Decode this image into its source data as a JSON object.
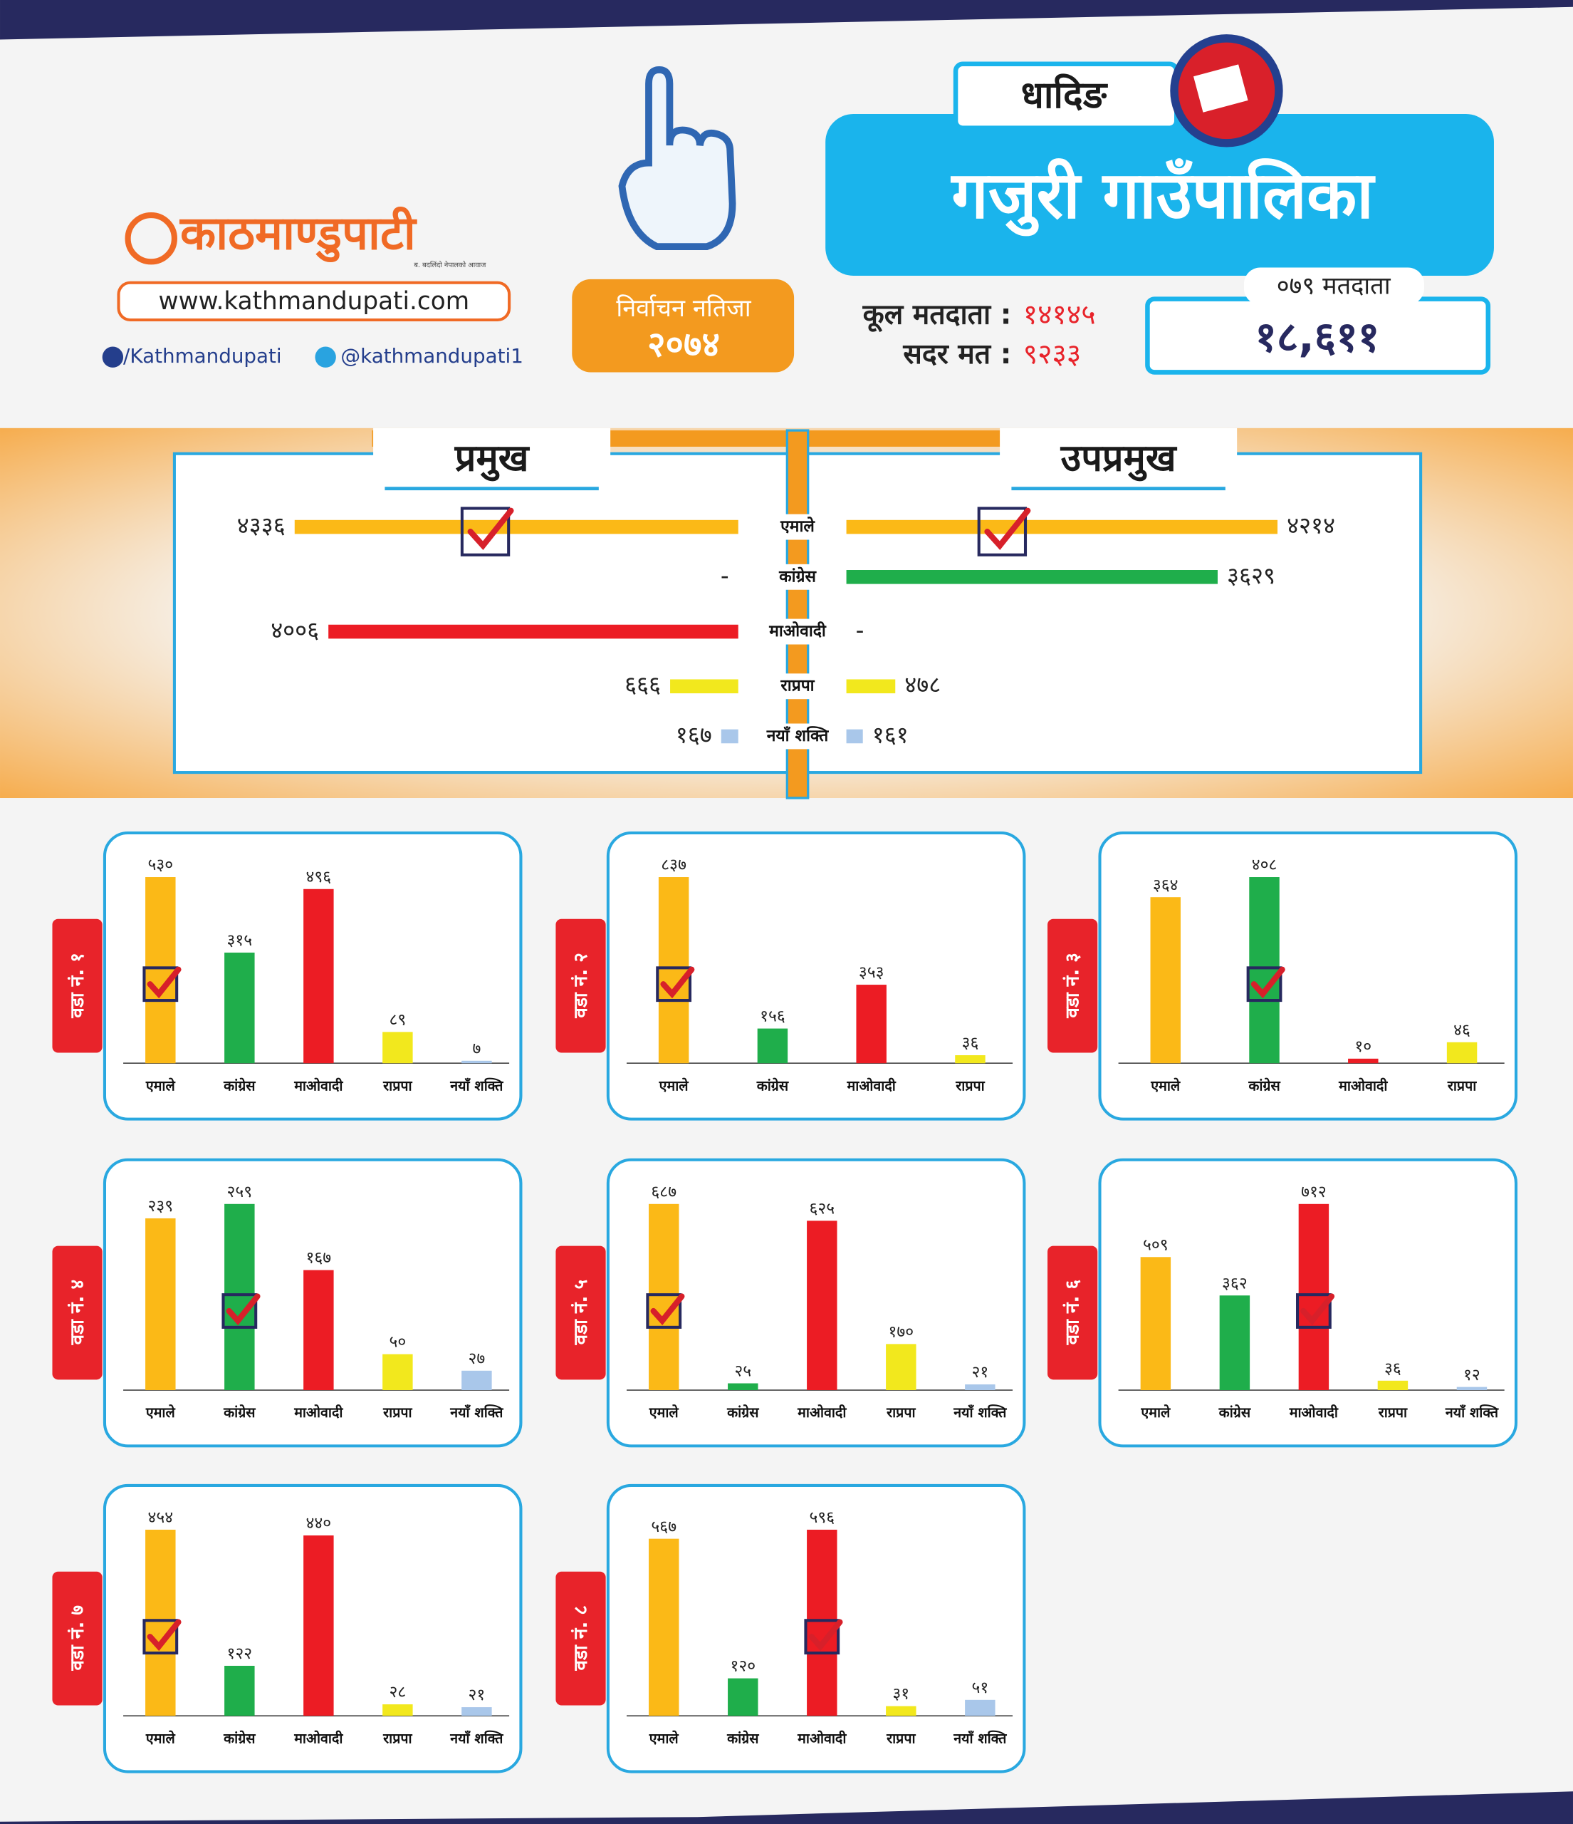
{
  "header": {
    "logo": "काठमाण्डुपाटी",
    "tagline": "ब. बदलिंदो नेपालको आवाज",
    "website": "www.kathmandupati.com",
    "facebook": "/Kathmandupati",
    "twitter": "@kathmandupati1",
    "badge_title": "निर्वाचन नतिजा",
    "badge_year": "२०७४",
    "district": "धादिङ",
    "municipality": "गजुरी गाउँपालिका",
    "total_voters_label": "कूल मतदाता :",
    "total_voters": "१४१४५",
    "valid_votes_label": "सदर मत :",
    "valid_votes": "९२३३",
    "voters_079_label": "०७९ मतदाता",
    "voters_079": "१८,६११"
  },
  "chart_data": [
    {
      "type": "diverging-bar",
      "categories": [
        "एमाले",
        "कांग्रेस",
        "माओवादी",
        "राप्रपा",
        "नयाँ शक्ति"
      ],
      "colors": [
        "#fbb917",
        "#1fae4b",
        "#ec1c24",
        "#f2e81d",
        "#a9c7ea"
      ],
      "series": [
        {
          "name": "प्रमुख",
          "values": [
            4336,
            null,
            4006,
            666,
            167
          ],
          "value_labels": [
            "४३३६",
            "-",
            "४००६",
            "६६६",
            "१६७"
          ],
          "winner": 0
        },
        {
          "name": "उपप्रमुख",
          "values": [
            4214,
            3629,
            null,
            478,
            161
          ],
          "value_labels": [
            "४२१४",
            "३६२९",
            "-",
            "४७८",
            "१६१"
          ],
          "winner": 0
        }
      ]
    },
    {
      "type": "bar",
      "title": "वडा नं. १",
      "categories": [
        "एमाले",
        "कांग्रेस",
        "माओवादी",
        "राप्रपा",
        "नयाँ शक्ति"
      ],
      "values": [
        530,
        315,
        496,
        89,
        7
      ],
      "value_labels": [
        "५३०",
        "३१५",
        "४९६",
        "८९",
        "७"
      ],
      "colors": [
        "#fbb917",
        "#1fae4b",
        "#ec1c24",
        "#f2e81d",
        "#a9c7ea"
      ],
      "winner": 0
    },
    {
      "type": "bar",
      "title": "वडा नं. २",
      "categories": [
        "एमाले",
        "कांग्रेस",
        "माओवादी",
        "राप्रपा"
      ],
      "values": [
        837,
        156,
        353,
        36
      ],
      "value_labels": [
        "८३७",
        "१५६",
        "३५३",
        "३६"
      ],
      "colors": [
        "#fbb917",
        "#1fae4b",
        "#ec1c24",
        "#f2e81d"
      ],
      "winner": 0
    },
    {
      "type": "bar",
      "title": "वडा नं. ३",
      "categories": [
        "एमाले",
        "कांग्रेस",
        "माओवादी",
        "राप्रपा"
      ],
      "values": [
        364,
        408,
        10,
        46
      ],
      "value_labels": [
        "३६४",
        "४०८",
        "१०",
        "४६"
      ],
      "colors": [
        "#fbb917",
        "#1fae4b",
        "#ec1c24",
        "#f2e81d"
      ],
      "winner": 1
    },
    {
      "type": "bar",
      "title": "वडा नं. ४",
      "categories": [
        "एमाले",
        "कांग्रेस",
        "माओवादी",
        "राप्रपा",
        "नयाँ शक्ति"
      ],
      "values": [
        239,
        259,
        167,
        50,
        27
      ],
      "value_labels": [
        "२३९",
        "२५९",
        "१६७",
        "५०",
        "२७"
      ],
      "colors": [
        "#fbb917",
        "#1fae4b",
        "#ec1c24",
        "#f2e81d",
        "#a9c7ea"
      ],
      "winner": 1
    },
    {
      "type": "bar",
      "title": "वडा नं. ५",
      "categories": [
        "एमाले",
        "कांग्रेस",
        "माओवादी",
        "राप्रपा",
        "नयाँ शक्ति"
      ],
      "values": [
        687,
        25,
        625,
        170,
        21
      ],
      "value_labels": [
        "६८७",
        "२५",
        "६२५",
        "१७०",
        "२१"
      ],
      "colors": [
        "#fbb917",
        "#1fae4b",
        "#ec1c24",
        "#f2e81d",
        "#a9c7ea"
      ],
      "winner": 0
    },
    {
      "type": "bar",
      "title": "वडा नं. ६",
      "categories": [
        "एमाले",
        "कांग्रेस",
        "माओवादी",
        "राप्रपा",
        "नयाँ शक्ति"
      ],
      "values": [
        509,
        362,
        712,
        36,
        12
      ],
      "value_labels": [
        "५०९",
        "३६२",
        "७१२",
        "३६",
        "१२"
      ],
      "colors": [
        "#fbb917",
        "#1fae4b",
        "#ec1c24",
        "#f2e81d",
        "#a9c7ea"
      ],
      "winner": 2
    },
    {
      "type": "bar",
      "title": "वडा नं. ७",
      "categories": [
        "एमाले",
        "कांग्रेस",
        "माओवादी",
        "राप्रपा",
        "नयाँ शक्ति"
      ],
      "values": [
        454,
        122,
        440,
        28,
        21
      ],
      "value_labels": [
        "४५४",
        "१२२",
        "४४०",
        "२८",
        "२१"
      ],
      "colors": [
        "#fbb917",
        "#1fae4b",
        "#ec1c24",
        "#f2e81d",
        "#a9c7ea"
      ],
      "winner": 0
    },
    {
      "type": "bar",
      "title": "वडा नं. ८",
      "categories": [
        "एमाले",
        "कांग्रेस",
        "माओवादी",
        "राप्रपा",
        "नयाँ शक्ति"
      ],
      "values": [
        567,
        120,
        596,
        31,
        51
      ],
      "value_labels": [
        "५६७",
        "१२०",
        "५९६",
        "३१",
        "५१"
      ],
      "colors": [
        "#fbb917",
        "#1fae4b",
        "#ec1c24",
        "#f2e81d",
        "#a9c7ea"
      ],
      "winner": 2
    }
  ]
}
